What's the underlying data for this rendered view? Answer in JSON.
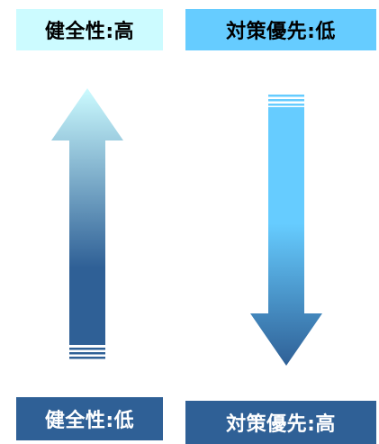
{
  "labels": {
    "top_left": "健全性:高",
    "top_right": "対策優先:低",
    "bottom_left": "健全性:低",
    "bottom_right": "対策優先:高"
  },
  "colors": {
    "light_cyan": "#ccfbff",
    "sky_blue": "#66ccff",
    "steel_blue": "#2f6096",
    "text_dark": "#000000",
    "text_light": "#ffffff"
  },
  "arrows": {
    "left": {
      "direction": "up",
      "gradient": "steel-blue-to-light-cyan"
    },
    "right": {
      "direction": "down",
      "gradient": "sky-blue-to-steel-blue"
    }
  }
}
